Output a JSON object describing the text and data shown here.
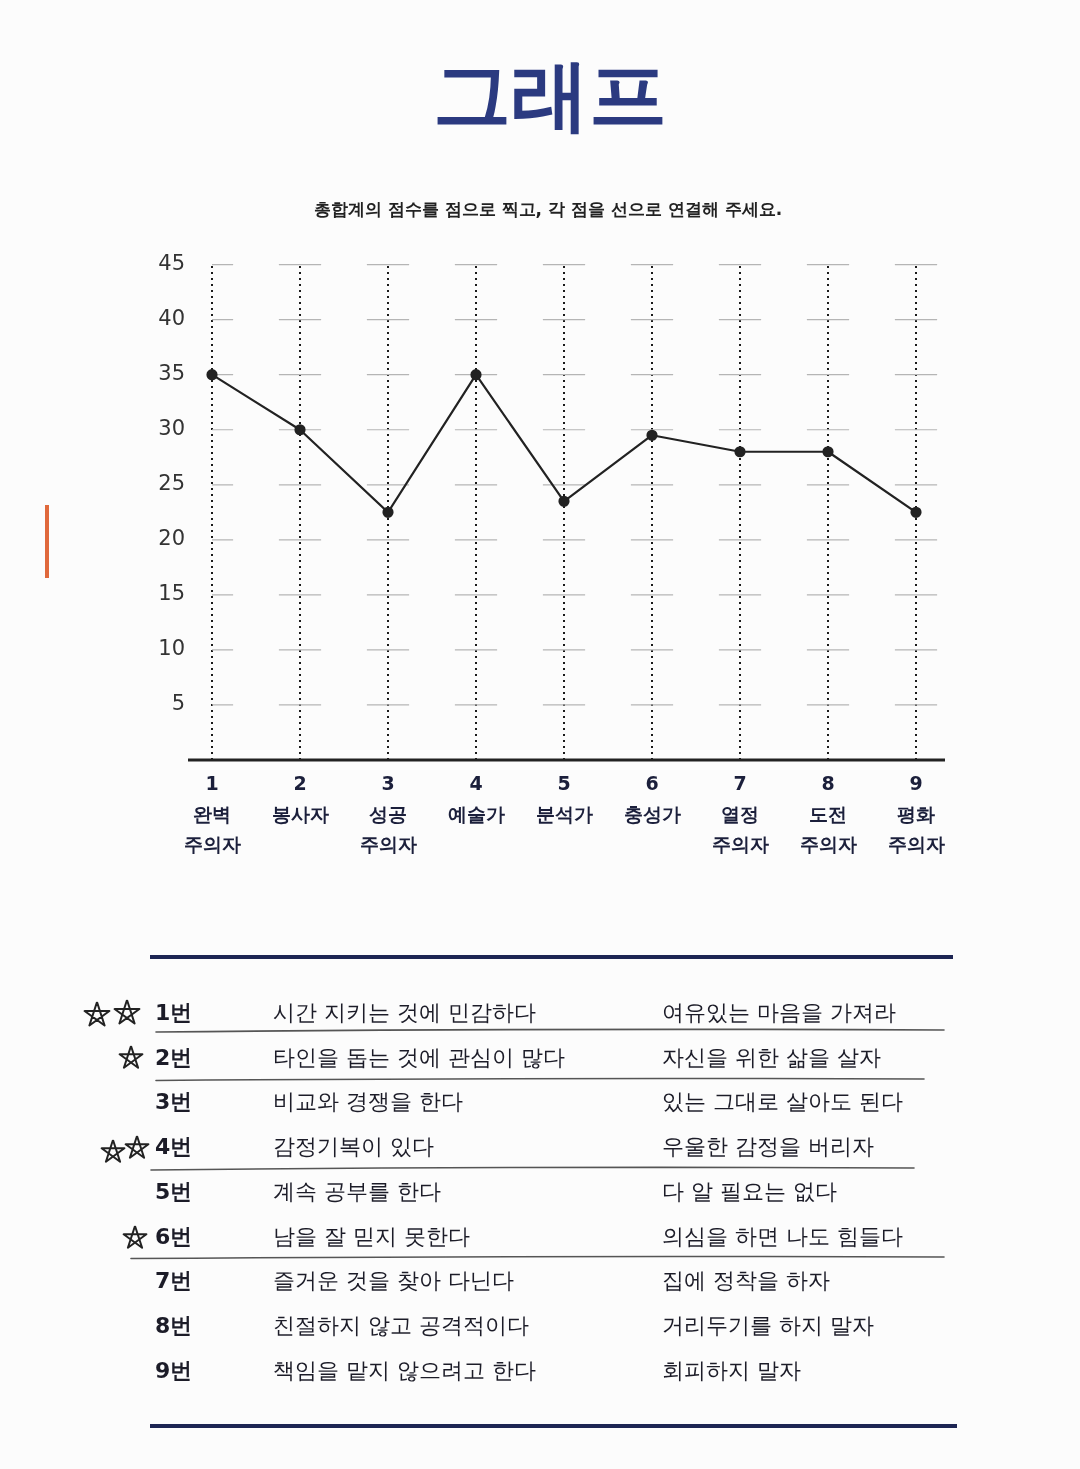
{
  "chart_data": {
    "type": "line",
    "title": "그래프",
    "subtitle": "총합계의 점수를 점으로 찍고, 각 점을 선으로 연결해 주세요.",
    "categories": [
      "1\n완벽\n주의자",
      "2\n봉사자",
      "3\n성공\n주의자",
      "4\n예술가",
      "5\n분석가",
      "6\n충성가",
      "7\n열정\n주의자",
      "8\n도전\n주의자",
      "9\n평화\n주의자"
    ],
    "values": [
      35,
      30,
      22.5,
      35,
      23.5,
      29.5,
      28,
      28,
      22.5
    ],
    "color": "#222222",
    "ylim": [
      0,
      45
    ],
    "yticks": [
      5,
      10,
      15,
      20,
      25,
      30,
      35,
      40,
      45
    ],
    "grid": true,
    "marker": "circle",
    "line_style": "solid",
    "annotations": [
      "1번",
      "시간 지키는 것에 민감하다",
      "여유있는 마음을 가져라",
      "2번",
      "타인을 돕는 것에 관심이 많다",
      "자신을 위한 삶을 살자",
      "3번",
      "비교와 경쟁을 한다",
      "있는 그대로 살아도 된다",
      "4번",
      "감정기복이 있다",
      "우울한 감정을 버리자",
      "5번",
      "계속 공부를 한다",
      "다 알 필요는 없다",
      "6번",
      "남을 잘 믿지 못한다",
      "의심을 하면 나도 힘들다",
      "7번",
      "즐거운 것을 찾아 다닌다",
      "집에 정착을 하자",
      "8번",
      "친절하지 않고 공격적이다",
      "거리두기를 하지 말자",
      "9번",
      "책임을 맡지 않으려고 한다",
      "회피하지 말자"
    ]
  }
}
